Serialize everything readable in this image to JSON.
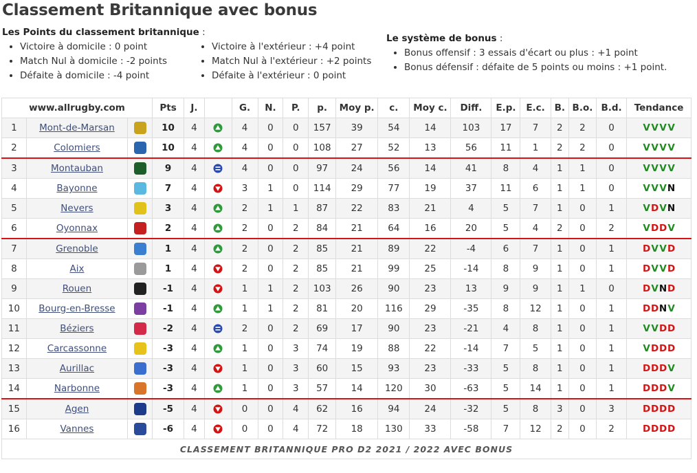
{
  "title": "Classement Britannique avec bonus",
  "points_header": "Les Points du classement britannique",
  "points_header_suffix": " :",
  "points_home": [
    "Victoire à domicile : 0 point",
    "Match Nul à domicile : -2 points",
    "Défaite à domicile : -4 point"
  ],
  "points_away": [
    "Victoire à l'extérieur : +4 point",
    "Match Nul à l'extérieur : +2 points",
    "Défaite à l'extérieur : 0 point"
  ],
  "bonus_header": "Le système de bonus",
  "bonus_header_suffix": " :",
  "bonus_rules": [
    "Bonus offensif : 3 essais d'écart ou plus : +1 point",
    "Bonus défensif : défaite de 5 points ou moins : +1 point."
  ],
  "table": {
    "site": "www.allrugby.com",
    "columns": [
      "Pts",
      "J.",
      "",
      "G.",
      "N.",
      "P.",
      "p.",
      "Moy p.",
      "c.",
      "Moy c.",
      "Diff.",
      "E.p.",
      "E.c.",
      "B.",
      "B.o.",
      "B.d.",
      "Tendance"
    ],
    "caption": "CLASSEMENT BRITANNIQUE PRO D2 2021 / 2022 AVEC BONUS",
    "rows": [
      {
        "rank": "1",
        "team": "Mont-de-Marsan",
        "logo": "logo-mont-de-marsan",
        "logo_color": "#c9a21e",
        "pts": "10",
        "j": "4",
        "trend": "up",
        "g": "4",
        "n": "0",
        "p": "0",
        "pf": "157",
        "mpf": "39",
        "pa": "54",
        "mpa": "14",
        "diff": "103",
        "ep": "17",
        "ec": "7",
        "b": "2",
        "bo": "2",
        "bd": "0",
        "tend": [
          "V",
          "V",
          "V",
          "V"
        ]
      },
      {
        "rank": "2",
        "team": "Colomiers",
        "logo": "logo-colomiers",
        "logo_color": "#2a66b0",
        "pts": "10",
        "j": "4",
        "trend": "up",
        "g": "4",
        "n": "0",
        "p": "0",
        "pf": "108",
        "mpf": "27",
        "pa": "52",
        "mpa": "13",
        "diff": "56",
        "ep": "11",
        "ec": "1",
        "b": "2",
        "bo": "2",
        "bd": "0",
        "tend": [
          "V",
          "V",
          "V",
          "V"
        ]
      },
      {
        "rank": "3",
        "team": "Montauban",
        "logo": "logo-montauban",
        "logo_color": "#1e5e2a",
        "pts": "9",
        "j": "4",
        "trend": "same",
        "g": "4",
        "n": "0",
        "p": "0",
        "pf": "97",
        "mpf": "24",
        "pa": "56",
        "mpa": "14",
        "diff": "41",
        "ep": "8",
        "ec": "4",
        "b": "1",
        "bo": "1",
        "bd": "0",
        "tend": [
          "V",
          "V",
          "V",
          "V"
        ]
      },
      {
        "rank": "4",
        "team": "Bayonne",
        "logo": "logo-bayonne",
        "logo_color": "#5bb8e0",
        "pts": "7",
        "j": "4",
        "trend": "down",
        "g": "3",
        "n": "1",
        "p": "0",
        "pf": "114",
        "mpf": "29",
        "pa": "77",
        "mpa": "19",
        "diff": "37",
        "ep": "11",
        "ec": "6",
        "b": "1",
        "bo": "1",
        "bd": "0",
        "tend": [
          "V",
          "V",
          "V",
          "N"
        ]
      },
      {
        "rank": "5",
        "team": "Nevers",
        "logo": "logo-nevers",
        "logo_color": "#e0c21a",
        "pts": "3",
        "j": "4",
        "trend": "up",
        "g": "2",
        "n": "1",
        "p": "1",
        "pf": "87",
        "mpf": "22",
        "pa": "83",
        "mpa": "21",
        "diff": "4",
        "ep": "5",
        "ec": "7",
        "b": "1",
        "bo": "0",
        "bd": "1",
        "tend": [
          "V",
          "D",
          "V",
          "N"
        ]
      },
      {
        "rank": "6",
        "team": "Oyonnax",
        "logo": "logo-oyonnax",
        "logo_color": "#c42020",
        "pts": "2",
        "j": "4",
        "trend": "up",
        "g": "2",
        "n": "0",
        "p": "2",
        "pf": "84",
        "mpf": "21",
        "pa": "64",
        "mpa": "16",
        "diff": "20",
        "ep": "5",
        "ec": "4",
        "b": "2",
        "bo": "0",
        "bd": "2",
        "tend": [
          "V",
          "D",
          "D",
          "V"
        ]
      },
      {
        "rank": "7",
        "team": "Grenoble",
        "logo": "logo-grenoble",
        "logo_color": "#3a7fd0",
        "pts": "1",
        "j": "4",
        "trend": "up",
        "g": "2",
        "n": "0",
        "p": "2",
        "pf": "85",
        "mpf": "21",
        "pa": "89",
        "mpa": "22",
        "diff": "-4",
        "ep": "6",
        "ec": "7",
        "b": "1",
        "bo": "0",
        "bd": "1",
        "tend": [
          "D",
          "V",
          "V",
          "D"
        ]
      },
      {
        "rank": "8",
        "team": "Aix",
        "logo": "logo-aix",
        "logo_color": "#9a9a9a",
        "pts": "1",
        "j": "4",
        "trend": "down",
        "g": "2",
        "n": "0",
        "p": "2",
        "pf": "85",
        "mpf": "21",
        "pa": "99",
        "mpa": "25",
        "diff": "-14",
        "ep": "8",
        "ec": "9",
        "b": "1",
        "bo": "0",
        "bd": "1",
        "tend": [
          "D",
          "V",
          "V",
          "D"
        ]
      },
      {
        "rank": "9",
        "team": "Rouen",
        "logo": "logo-rouen",
        "logo_color": "#222222",
        "pts": "-1",
        "j": "4",
        "trend": "down",
        "g": "1",
        "n": "1",
        "p": "2",
        "pf": "103",
        "mpf": "26",
        "pa": "90",
        "mpa": "23",
        "diff": "13",
        "ep": "9",
        "ec": "9",
        "b": "1",
        "bo": "1",
        "bd": "0",
        "tend": [
          "D",
          "V",
          "N",
          "D"
        ]
      },
      {
        "rank": "10",
        "team": "Bourg-en-Bresse",
        "logo": "logo-bourg-en-bresse",
        "logo_color": "#7a3fa0",
        "pts": "-1",
        "j": "4",
        "trend": "up",
        "g": "1",
        "n": "1",
        "p": "2",
        "pf": "81",
        "mpf": "20",
        "pa": "116",
        "mpa": "29",
        "diff": "-35",
        "ep": "8",
        "ec": "12",
        "b": "1",
        "bo": "0",
        "bd": "1",
        "tend": [
          "D",
          "D",
          "N",
          "V"
        ]
      },
      {
        "rank": "11",
        "team": "Béziers",
        "logo": "logo-beziers",
        "logo_color": "#d42a4a",
        "pts": "-2",
        "j": "4",
        "trend": "same",
        "g": "2",
        "n": "0",
        "p": "2",
        "pf": "69",
        "mpf": "17",
        "pa": "90",
        "mpa": "23",
        "diff": "-21",
        "ep": "4",
        "ec": "8",
        "b": "1",
        "bo": "0",
        "bd": "1",
        "tend": [
          "V",
          "V",
          "D",
          "D"
        ]
      },
      {
        "rank": "12",
        "team": "Carcassonne",
        "logo": "logo-carcassonne",
        "logo_color": "#e6c21a",
        "pts": "-3",
        "j": "4",
        "trend": "up",
        "g": "1",
        "n": "0",
        "p": "3",
        "pf": "74",
        "mpf": "19",
        "pa": "88",
        "mpa": "22",
        "diff": "-14",
        "ep": "7",
        "ec": "5",
        "b": "1",
        "bo": "0",
        "bd": "1",
        "tend": [
          "V",
          "D",
          "D",
          "D"
        ]
      },
      {
        "rank": "13",
        "team": "Aurillac",
        "logo": "logo-aurillac",
        "logo_color": "#3a6fd0",
        "pts": "-3",
        "j": "4",
        "trend": "down",
        "g": "1",
        "n": "0",
        "p": "3",
        "pf": "60",
        "mpf": "15",
        "pa": "93",
        "mpa": "23",
        "diff": "-33",
        "ep": "5",
        "ec": "8",
        "b": "1",
        "bo": "0",
        "bd": "1",
        "tend": [
          "D",
          "D",
          "D",
          "V"
        ]
      },
      {
        "rank": "14",
        "team": "Narbonne",
        "logo": "logo-narbonne",
        "logo_color": "#d9752a",
        "pts": "-3",
        "j": "4",
        "trend": "up",
        "g": "1",
        "n": "0",
        "p": "3",
        "pf": "57",
        "mpf": "14",
        "pa": "120",
        "mpa": "30",
        "diff": "-63",
        "ep": "5",
        "ec": "14",
        "b": "1",
        "bo": "0",
        "bd": "1",
        "tend": [
          "D",
          "D",
          "D",
          "V"
        ]
      },
      {
        "rank": "15",
        "team": "Agen",
        "logo": "logo-agen",
        "logo_color": "#1e3a8a",
        "pts": "-5",
        "j": "4",
        "trend": "down",
        "g": "0",
        "n": "0",
        "p": "4",
        "pf": "62",
        "mpf": "16",
        "pa": "94",
        "mpa": "24",
        "diff": "-32",
        "ep": "5",
        "ec": "8",
        "b": "3",
        "bo": "0",
        "bd": "3",
        "tend": [
          "D",
          "D",
          "D",
          "D"
        ]
      },
      {
        "rank": "16",
        "team": "Vannes",
        "logo": "logo-vannes",
        "logo_color": "#2a4a9a",
        "pts": "-6",
        "j": "4",
        "trend": "down",
        "g": "0",
        "n": "0",
        "p": "4",
        "pf": "72",
        "mpf": "18",
        "pa": "130",
        "mpa": "33",
        "diff": "-58",
        "ep": "7",
        "ec": "12",
        "b": "2",
        "bo": "0",
        "bd": "2",
        "tend": [
          "D",
          "D",
          "D",
          "D"
        ]
      }
    ]
  },
  "colors": {
    "up": "#2e9a3a",
    "down": "#d41414",
    "same": "#2a4ab0",
    "separator": "#d41414"
  }
}
